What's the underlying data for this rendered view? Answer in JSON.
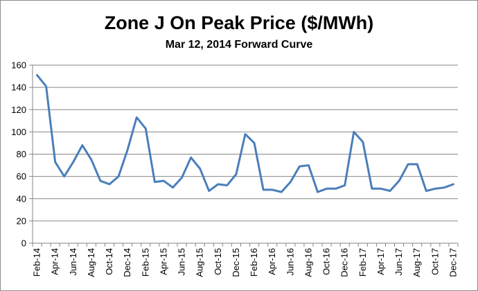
{
  "chart_data": {
    "type": "line",
    "title": "Zone J On Peak Price ($/MWh)",
    "subtitle": "Mar 12, 2014 Forward Curve",
    "xlabel": "",
    "ylabel": "",
    "ylim": [
      0,
      160
    ],
    "yticks": [
      0,
      20,
      40,
      60,
      80,
      100,
      120,
      140,
      160
    ],
    "grid": true,
    "legend": "none",
    "line_color": "#4a7ebb",
    "x": [
      "Feb-14",
      "Mar-14",
      "Apr-14",
      "May-14",
      "Jun-14",
      "Jul-14",
      "Aug-14",
      "Sep-14",
      "Oct-14",
      "Nov-14",
      "Dec-14",
      "Jan-15",
      "Feb-15",
      "Mar-15",
      "Apr-15",
      "May-15",
      "Jun-15",
      "Jul-15",
      "Aug-15",
      "Sep-15",
      "Oct-15",
      "Nov-15",
      "Dec-15",
      "Jan-16",
      "Feb-16",
      "Mar-16",
      "Apr-16",
      "May-16",
      "Jun-16",
      "Jul-16",
      "Aug-16",
      "Sep-16",
      "Oct-16",
      "Nov-16",
      "Dec-16",
      "Jan-17",
      "Feb-17",
      "Mar-17",
      "Apr-17",
      "May-17",
      "Jun-17",
      "Jul-17",
      "Aug-17",
      "Sep-17",
      "Oct-17",
      "Nov-17",
      "Dec-17"
    ],
    "xtick_labels": [
      "Feb-14",
      "Apr-14",
      "Jun-14",
      "Aug-14",
      "Oct-14",
      "Dec-14",
      "Feb-15",
      "Apr-15",
      "Jun-15",
      "Aug-15",
      "Oct-15",
      "Dec-15",
      "Feb-16",
      "Apr-16",
      "Jun-16",
      "Aug-16",
      "Oct-16",
      "Dec-16",
      "Feb-17",
      "Apr-17",
      "Jun-17",
      "Aug-17",
      "Oct-17",
      "Dec-17"
    ],
    "values": [
      151,
      141,
      73,
      60,
      73,
      88,
      75,
      56,
      53,
      60,
      84,
      113,
      103,
      55,
      56,
      50,
      59,
      77,
      67,
      47,
      53,
      52,
      62,
      98,
      90,
      48,
      48,
      46,
      55,
      69,
      70,
      46,
      49,
      49,
      52,
      100,
      91,
      49,
      49,
      47,
      56,
      71,
      71,
      47,
      49,
      50,
      53
    ]
  }
}
